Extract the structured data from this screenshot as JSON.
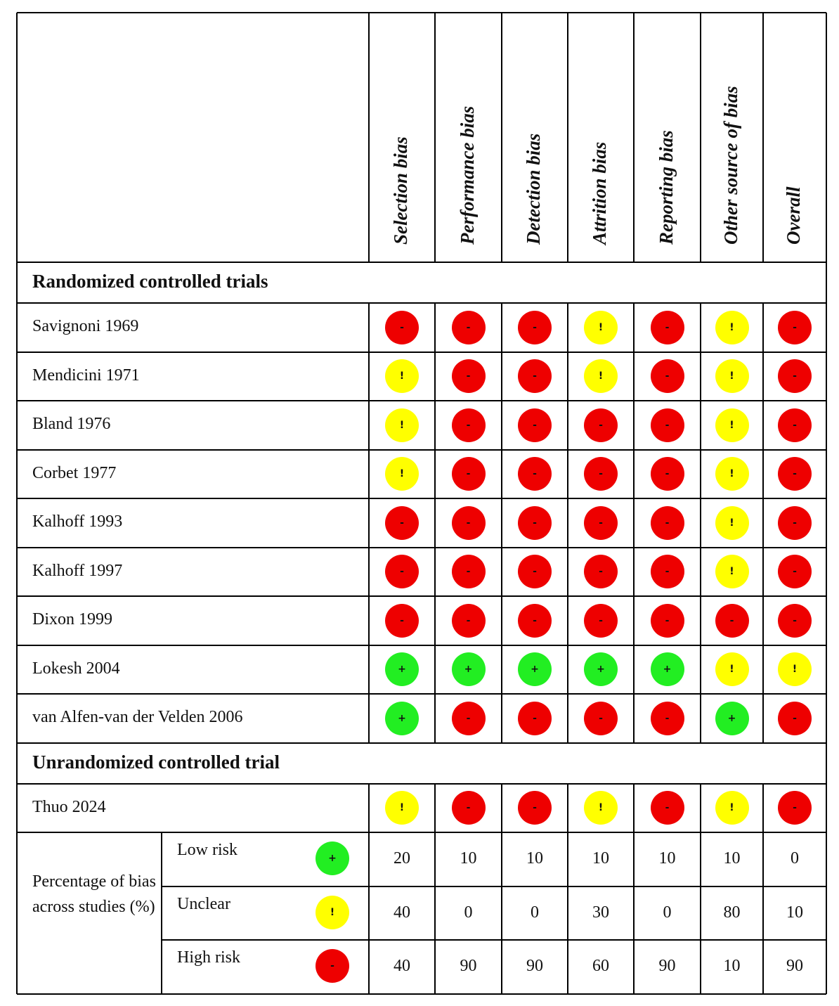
{
  "columns": [
    "Selection bias",
    "Performance bias",
    "Detection bias",
    "Attrition bias",
    "Reporting bias",
    "Other source of bias",
    "Overall"
  ],
  "colors": {
    "+": "#22ee22",
    "!": "#ffff00",
    "-": "#ee0000"
  },
  "groups": [
    {
      "title": "Randomized controlled trials",
      "studies": [
        {
          "name": "Savignoni 1969",
          "ratings": [
            "-",
            "-",
            "-",
            "!",
            "-",
            "!",
            "-"
          ]
        },
        {
          "name": "Mendicini 1971",
          "ratings": [
            "!",
            "-",
            "-",
            "!",
            "-",
            "!",
            "-"
          ]
        },
        {
          "name": "Bland 1976",
          "ratings": [
            "!",
            "-",
            "-",
            "-",
            "-",
            "!",
            "-"
          ]
        },
        {
          "name": "Corbet 1977",
          "ratings": [
            "!",
            "-",
            "-",
            "-",
            "-",
            "!",
            "-"
          ]
        },
        {
          "name": "Kalhoff 1993",
          "ratings": [
            "-",
            "-",
            "-",
            "-",
            "-",
            "!",
            "-"
          ]
        },
        {
          "name": "Kalhoff 1997",
          "ratings": [
            "-",
            "-",
            "-",
            "-",
            "-",
            "!",
            "-"
          ]
        },
        {
          "name": "Dixon 1999",
          "ratings": [
            "-",
            "-",
            "-",
            "-",
            "-",
            "-",
            "-"
          ]
        },
        {
          "name": "Lokesh 2004",
          "ratings": [
            "+",
            "+",
            "+",
            "+",
            "+",
            "!",
            "!"
          ]
        },
        {
          "name": "van Alfen-van der Velden 2006",
          "ratings": [
            "+",
            "-",
            "-",
            "-",
            "-",
            "+",
            "-"
          ]
        }
      ]
    },
    {
      "title": "Unrandomized controlled trial",
      "studies": [
        {
          "name": "Thuo 2024",
          "ratings": [
            "!",
            "-",
            "-",
            "!",
            "-",
            "!",
            "-"
          ]
        }
      ]
    }
  ],
  "summary": {
    "label": "Percentage of bias across studies (%)",
    "rows": [
      {
        "label": "Low risk",
        "symbol": "+",
        "values": [
          20,
          10,
          10,
          10,
          10,
          10,
          0
        ]
      },
      {
        "label": "Unclear",
        "symbol": "!",
        "values": [
          40,
          0,
          0,
          30,
          0,
          80,
          10
        ]
      },
      {
        "label": "High risk",
        "symbol": "-",
        "values": [
          40,
          90,
          90,
          60,
          90,
          10,
          90
        ]
      }
    ]
  }
}
